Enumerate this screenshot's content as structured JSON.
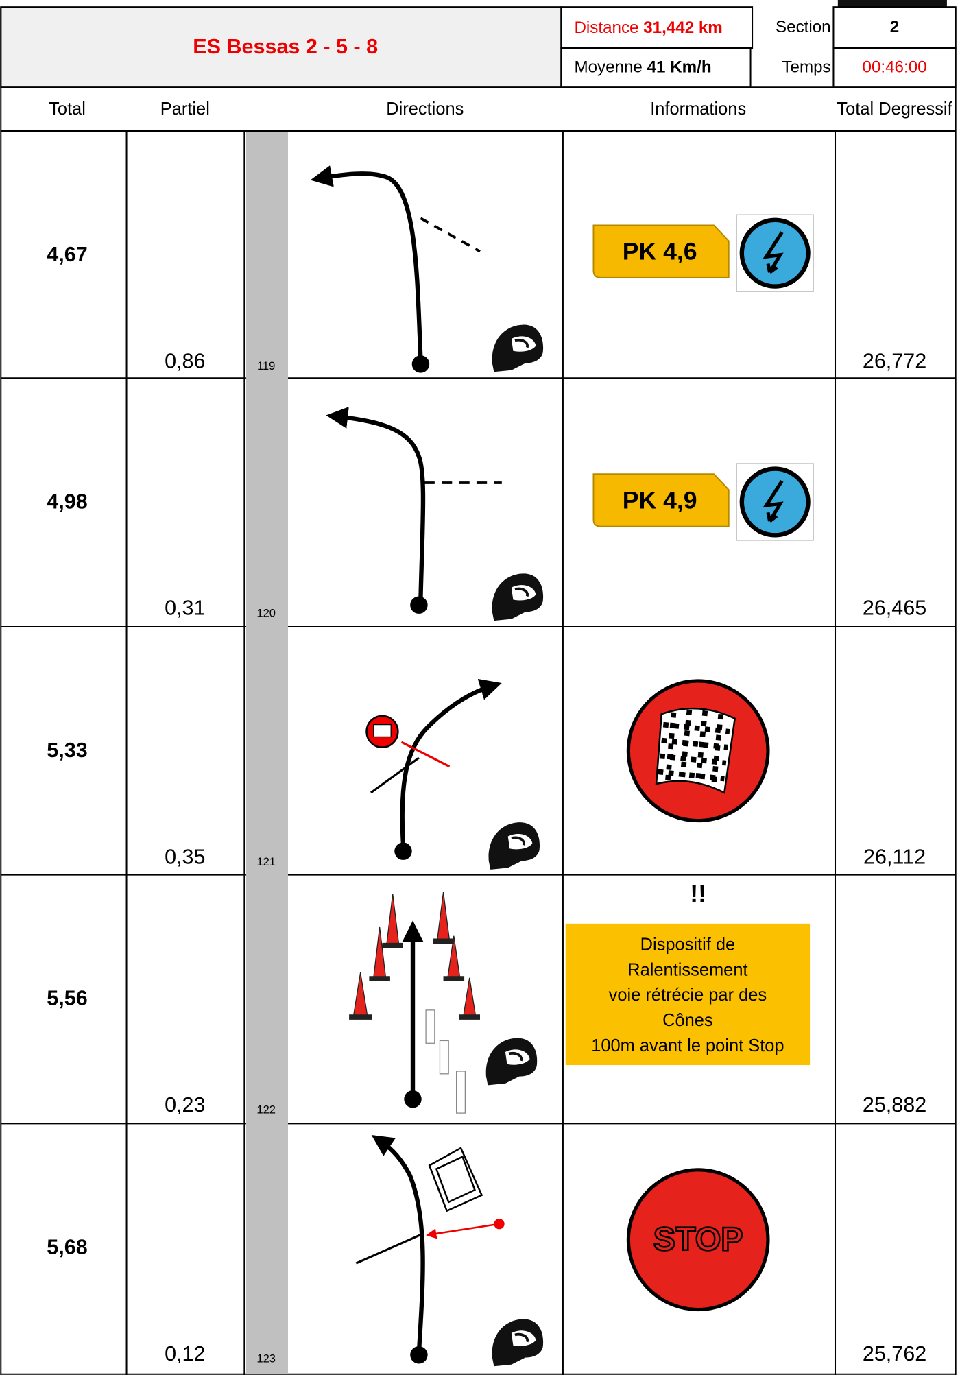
{
  "header": {
    "title": "ES Bessas 2 - 5 - 8",
    "distance_label": "Distance",
    "distance_value": "31,442 km",
    "average_label": "Moyenne",
    "average_value": "41 Km/h",
    "section_label": "Section",
    "section_value": "2",
    "time_label": "Temps",
    "time_value": "00:46:00"
  },
  "columns": [
    "Total",
    "Partiel",
    "Directions",
    "Informations",
    "Total Degressif"
  ],
  "rows": [
    {
      "total": "4,67",
      "partial": "0,86",
      "number": "119",
      "total_degressive": "26,772",
      "info": {
        "sign": "PK 4,6"
      }
    },
    {
      "total": "4,98",
      "partial": "0,31",
      "number": "120",
      "total_degressive": "26,465",
      "info": {
        "sign": "PK 4,9"
      }
    },
    {
      "total": "5,33",
      "partial": "0,35",
      "number": "121",
      "total_degressive": "26,112"
    },
    {
      "total": "5,56",
      "partial": "0,23",
      "number": "122",
      "total_degressive": "25,882",
      "info": {
        "warning": "!!",
        "lines": [
          "Dispositif de",
          "Ralentissement",
          "voie rétrécie par des",
          "Cônes",
          "100m avant le point Stop"
        ]
      }
    },
    {
      "total": "5,68",
      "partial": "0,12",
      "number": "123",
      "total_degressive": "25,762",
      "info": {
        "sign": "STOP"
      }
    }
  ]
}
